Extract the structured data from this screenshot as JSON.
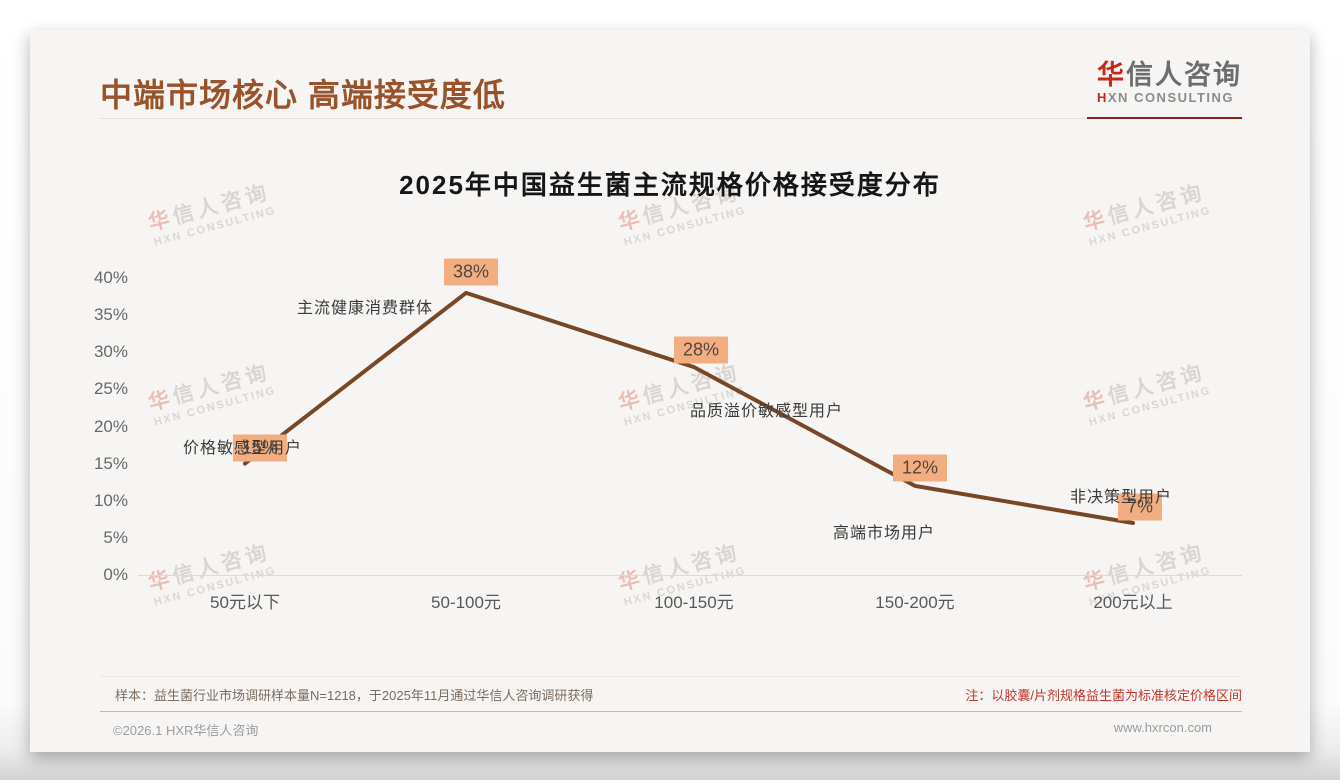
{
  "header": {
    "title": "中端市场核心 高端接受度低",
    "logo": {
      "zh_accent": "华",
      "zh_rest": "信人咨询",
      "en_accent": "H",
      "en_rest": "XN CONSULTING"
    }
  },
  "chart_data": {
    "type": "line",
    "title": "2025年中国益生菌主流规格价格接受度分布",
    "categories": [
      "50元以下",
      "50-100元",
      "100-150元",
      "150-200元",
      "200元以上"
    ],
    "values": [
      15,
      38,
      28,
      12,
      7
    ],
    "value_labels": [
      "15%",
      "38%",
      "28%",
      "12%",
      "7%"
    ],
    "annotations": [
      "价格敏感型用户",
      "主流健康消费群体",
      "品质溢价敏感型用户",
      "高端市场用户",
      "非决策型用户"
    ],
    "ylim": [
      0,
      40
    ],
    "ytick_labels": [
      "40%",
      "35%",
      "30%",
      "25%",
      "20%",
      "15%",
      "10%",
      "5%",
      "0%"
    ],
    "xlabel": "",
    "ylabel": "",
    "grid": false,
    "legend": false,
    "line_color": "#784726",
    "label_bg_color": "#f2ae80"
  },
  "watermark": {
    "line1_accent": "华",
    "line1_rest": "信人咨询",
    "line2": "HXN CONSULTING"
  },
  "footer": {
    "sample_note": "样本：益生菌行业市场调研样本量N=1218，于2025年11月通过华信人咨询调研获得",
    "price_note": "注：以胶囊/片剂规格益生菌为标准核定价格区间",
    "copyright": "©2026.1 HXR华信人咨询",
    "website": "www.hxrcon.com"
  },
  "colors": {
    "header_title": "#99532a",
    "logo_accent": "#c9271a",
    "note_red": "#bf3629",
    "line_brown": "#784726",
    "label_orange": "#f2ae80"
  }
}
